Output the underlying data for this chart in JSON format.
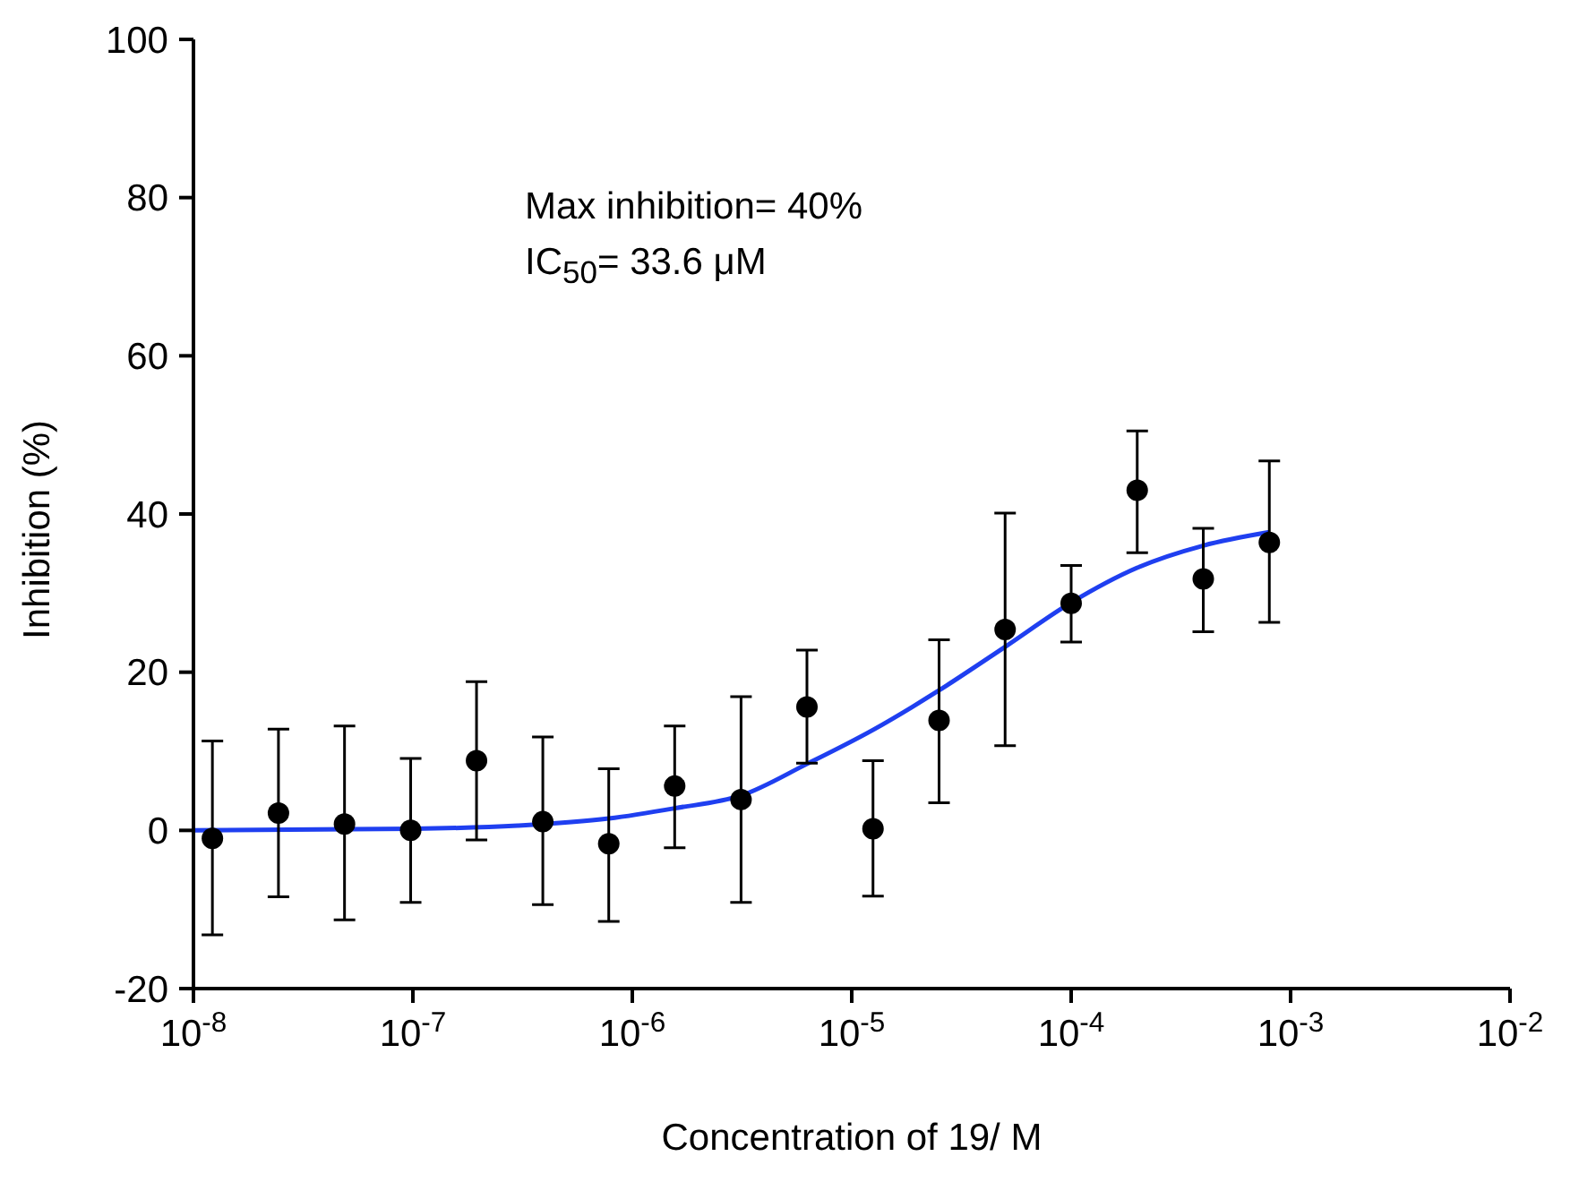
{
  "chart_data": {
    "type": "scatter",
    "xlabel": "Concentration of 19/ M",
    "ylabel": "Inhibition (%)",
    "annotations": [
      "Max inhibition= 40%",
      "IC$_{50}$= 33.6 μM"
    ],
    "log": "x",
    "grid": false,
    "legend": false,
    "xlim": [
      1e-08,
      0.01
    ],
    "ylim": [
      -20,
      100
    ],
    "xticks": [
      {
        "value": 1e-08,
        "label": "10$^{-8}$"
      },
      {
        "value": 1e-07,
        "label": "10$^{-7}$"
      },
      {
        "value": 1e-06,
        "label": "10$^{-6}$"
      },
      {
        "value": 1e-05,
        "label": "10$^{-5}$"
      },
      {
        "value": 0.0001,
        "label": "10$^{-4}$"
      },
      {
        "value": 0.001,
        "label": "10$^{-3}$"
      },
      {
        "value": 0.01,
        "label": "10$^{-2}$"
      }
    ],
    "yticks": [
      -20,
      0,
      20,
      40,
      60,
      80,
      100
    ],
    "series": [
      {
        "color": "#000000",
        "marker": "circle",
        "x": [
          1.22e-08,
          2.44e-08,
          4.88e-08,
          9.77e-08,
          1.95e-07,
          3.91e-07,
          7.81e-07,
          1.56e-06,
          3.13e-06,
          6.25e-06,
          1.25e-05,
          2.5e-05,
          5e-05,
          0.0001,
          0.0002,
          0.0004,
          0.0008
        ],
        "values": [
          -1.0,
          2.2,
          0.8,
          0.0,
          8.8,
          1.1,
          -1.7,
          5.6,
          3.9,
          15.6,
          0.2,
          13.9,
          25.4,
          28.7,
          43.0,
          31.8,
          36.4
        ],
        "errors": [
          [
            -13.2,
            11.3
          ],
          [
            -8.4,
            12.8
          ],
          [
            -11.3,
            13.2
          ],
          [
            -9.1,
            9.1
          ],
          [
            -1.2,
            18.8
          ],
          [
            -9.4,
            11.8
          ],
          [
            -11.5,
            7.8
          ],
          [
            -2.2,
            13.2
          ],
          [
            -9.1,
            16.9
          ],
          [
            8.5,
            22.8
          ],
          [
            -8.3,
            8.8
          ],
          [
            3.5,
            24.1
          ],
          [
            10.7,
            40.1
          ],
          [
            23.8,
            33.5
          ],
          [
            35.1,
            50.5
          ],
          [
            25.1,
            38.2
          ],
          [
            26.3,
            46.7
          ]
        ]
      },
      {
        "type": "line",
        "color": "#1f3ff0",
        "marker": "none",
        "line_style": "solid",
        "x": [
          1e-08,
          1e-07,
          3e-07,
          7.81e-07,
          1.56e-06,
          3.13e-06,
          6.25e-06,
          1.25e-05,
          2.5e-05,
          5e-05,
          0.0001,
          0.0002,
          0.0004,
          0.0008
        ],
        "values": [
          0.0,
          0.2,
          0.6,
          1.5,
          2.8,
          4.4,
          8.4,
          12.7,
          17.7,
          23.2,
          28.8,
          33.2,
          36.0,
          37.7
        ]
      }
    ]
  }
}
